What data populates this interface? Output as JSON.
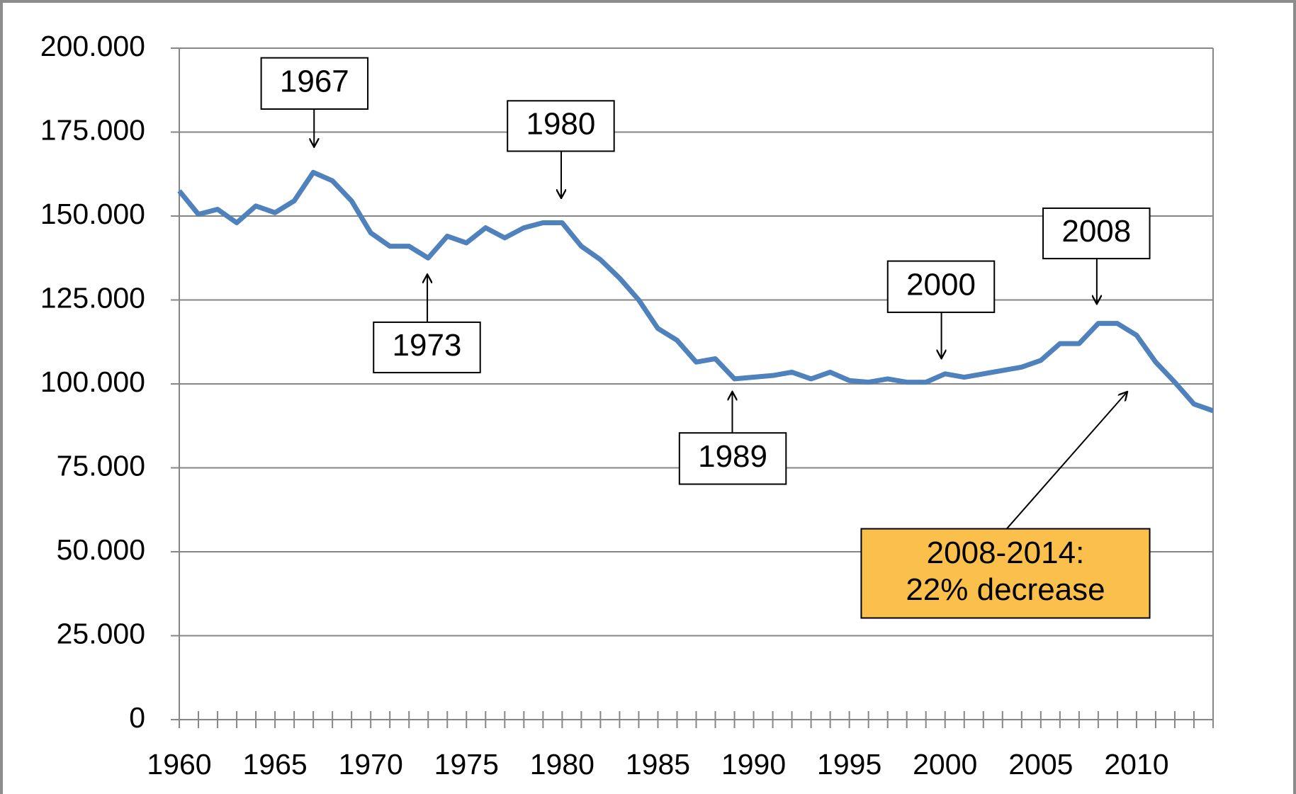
{
  "chart_data": {
    "type": "line",
    "x": [
      1960,
      1961,
      1962,
      1963,
      1964,
      1965,
      1966,
      1967,
      1968,
      1969,
      1970,
      1971,
      1972,
      1973,
      1974,
      1975,
      1976,
      1977,
      1978,
      1979,
      1980,
      1981,
      1982,
      1983,
      1984,
      1985,
      1986,
      1987,
      1988,
      1989,
      1990,
      1991,
      1992,
      1993,
      1994,
      1995,
      1996,
      1997,
      1998,
      1999,
      2000,
      2001,
      2002,
      2003,
      2004,
      2005,
      2006,
      2007,
      2008,
      2009,
      2010,
      2011,
      2012,
      2013,
      2014
    ],
    "series": [
      {
        "color": "#4f81bd",
        "values": [
          157500,
          150500,
          152000,
          148000,
          153000,
          151000,
          154500,
          163000,
          160500,
          154500,
          145000,
          141000,
          141000,
          137500,
          144000,
          142000,
          146500,
          143500,
          146500,
          148000,
          148000,
          141000,
          137000,
          131500,
          125000,
          116500,
          113000,
          106500,
          107500,
          101500,
          102000,
          102500,
          103500,
          101500,
          103500,
          101000,
          100500,
          101500,
          100500,
          100500,
          103000,
          102000,
          103000,
          104000,
          105000,
          107000,
          112000,
          112000,
          118000,
          118000,
          114500,
          106500,
          100500,
          94000,
          92000
        ]
      }
    ],
    "xlim": [
      1960,
      2014
    ],
    "xticks": [
      1960,
      1965,
      1970,
      1975,
      1980,
      1985,
      1990,
      1995,
      2000,
      2005,
      2010
    ],
    "ylim": [
      0,
      200000
    ],
    "yticks": [
      0,
      {
        "value": 25000,
        "label": "25.000"
      },
      {
        "value": 50000,
        "label": "50.000"
      },
      {
        "value": 75000,
        "label": "75.000"
      },
      {
        "value": 100000,
        "label": "100.000"
      },
      {
        "value": 125000,
        "label": "125.000"
      },
      {
        "value": 150000,
        "label": "150.000"
      },
      {
        "value": 175000,
        "label": "175.000"
      },
      {
        "value": 200000,
        "label": "200.000"
      }
    ],
    "grid": true,
    "annotations": [
      {
        "text": "1967"
      },
      {
        "text": "1973"
      },
      {
        "text": "1980"
      },
      {
        "text": "1989"
      },
      {
        "text": "2000"
      },
      {
        "text": "2008"
      },
      {
        "text": [
          "2008-2014:",
          "22% decrease"
        ],
        "color": "#fbbf4c"
      }
    ]
  }
}
